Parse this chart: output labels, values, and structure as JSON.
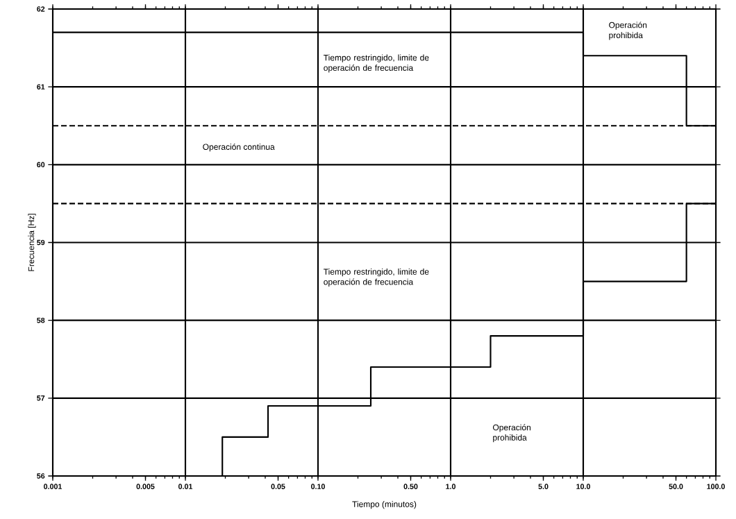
{
  "chart_data": {
    "type": "step",
    "xlabel": "Tiempo (minutos)",
    "ylabel": "Frecuencia [Hz]",
    "log": "x",
    "xlim": [
      0.001,
      100
    ],
    "ylim": [
      56,
      62
    ],
    "xticks": [
      0.001,
      0.005,
      0.01,
      0.05,
      {
        "value": 0.1,
        "label": "0.10"
      },
      {
        "value": 0.5,
        "label": "0.50"
      },
      {
        "value": 1,
        "label": "1.0"
      },
      {
        "value": 5,
        "label": "5.0"
      },
      {
        "value": 10,
        "label": "10.0"
      },
      {
        "value": 50,
        "label": "50.0"
      },
      {
        "value": 100,
        "label": "100.0"
      }
    ],
    "yticks": [
      56,
      57,
      58,
      59,
      60,
      61,
      62
    ],
    "grid": true,
    "series": [
      {
        "color": "#000000",
        "x": [
          0.019,
          0.019,
          0.042,
          0.25,
          2,
          10,
          60,
          100
        ],
        "values": [
          56,
          56.5,
          56.9,
          57.4,
          57.8,
          58.5,
          59.5,
          59.5
        ]
      },
      {
        "color": "#000000",
        "x": [
          0.001,
          10,
          60,
          100
        ],
        "values": [
          61.7,
          61.4,
          60.5,
          60.5
        ]
      }
    ],
    "ref_lines": [
      {
        "axis": "y",
        "value": 60.5,
        "color": "#000000",
        "line_style": "dashed"
      },
      {
        "axis": "y",
        "value": 59.5,
        "color": "#000000",
        "line_style": "dashed"
      }
    ],
    "annotations": [
      "Tiempo restringido,  limite de operación de frecuencia",
      "Operación continua",
      "Tiempo restringido,  limite de operación de frecuencia",
      "Operación prohibida",
      "Operación prohibida"
    ]
  }
}
